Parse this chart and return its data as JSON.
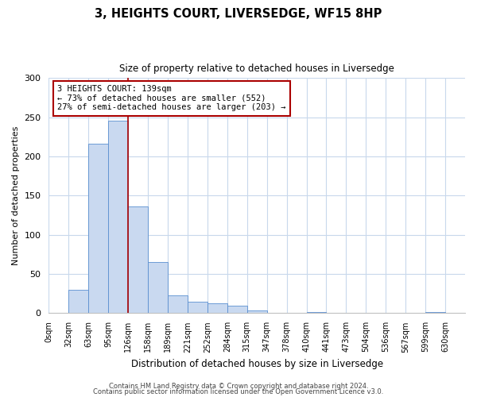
{
  "title": "3, HEIGHTS COURT, LIVERSEDGE, WF15 8HP",
  "subtitle": "Size of property relative to detached houses in Liversedge",
  "xlabel": "Distribution of detached houses by size in Liversedge",
  "ylabel": "Number of detached properties",
  "bin_labels": [
    "0sqm",
    "32sqm",
    "63sqm",
    "95sqm",
    "126sqm",
    "158sqm",
    "189sqm",
    "221sqm",
    "252sqm",
    "284sqm",
    "315sqm",
    "347sqm",
    "378sqm",
    "410sqm",
    "441sqm",
    "473sqm",
    "504sqm",
    "536sqm",
    "567sqm",
    "599sqm",
    "630sqm"
  ],
  "bar_heights": [
    0,
    30,
    216,
    246,
    136,
    65,
    23,
    15,
    13,
    10,
    3,
    0,
    0,
    1,
    0,
    0,
    0,
    0,
    0,
    1,
    0
  ],
  "bar_color": "#c9d9f0",
  "bar_edge_color": "#5a8fd0",
  "property_line_x": 4,
  "property_line_color": "#aa0000",
  "annotation_line1": "3 HEIGHTS COURT: 139sqm",
  "annotation_line2": "← 73% of detached houses are smaller (552)",
  "annotation_line3": "27% of semi-detached houses are larger (203) →",
  "annotation_box_color": "#ffffff",
  "annotation_box_edge": "#aa0000",
  "ylim": [
    0,
    300
  ],
  "yticks": [
    0,
    50,
    100,
    150,
    200,
    250,
    300
  ],
  "footer_line1": "Contains HM Land Registry data © Crown copyright and database right 2024.",
  "footer_line2": "Contains public sector information licensed under the Open Government Licence v3.0.",
  "background_color": "#ffffff",
  "grid_color": "#c8d8ec",
  "figsize": [
    6.0,
    5.0
  ],
  "dpi": 100
}
